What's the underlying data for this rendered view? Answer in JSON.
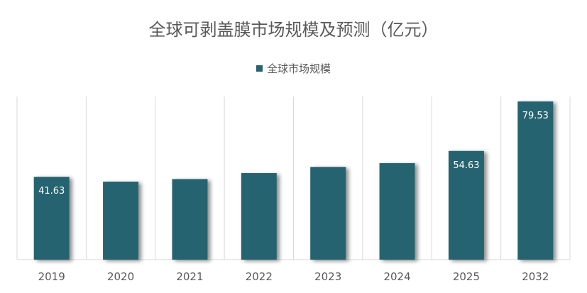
{
  "chart_data": {
    "type": "bar",
    "title": "全球可剥盖膜市场规模及预测（亿元）",
    "xlabel": "",
    "ylabel": "",
    "categories": [
      "2019",
      "2020",
      "2021",
      "2022",
      "2023",
      "2024",
      "2025",
      "2032"
    ],
    "series": [
      {
        "name": "全球市场规模",
        "values": [
          41.63,
          39.2,
          40.5,
          43.5,
          46.6,
          48.5,
          54.63,
          79.53
        ],
        "data_labels": [
          "41.63",
          "",
          "",
          "",
          "",
          "",
          "54.63",
          "79.53"
        ]
      }
    ],
    "ylim": [
      0,
      82
    ],
    "grid": "vertical",
    "legend_position": "top",
    "colors": {
      "bar": "#27636f",
      "grid": "#d9d9d9",
      "text": "#595959",
      "label": "#ffffff"
    }
  }
}
